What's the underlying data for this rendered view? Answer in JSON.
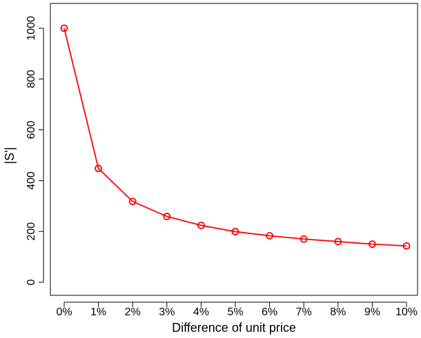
{
  "chart_data": {
    "type": "line",
    "title": "",
    "xlabel": "Difference of unit price",
    "ylabel": "|S'|",
    "categories": [
      "0%",
      "1%",
      "2%",
      "3%",
      "4%",
      "5%",
      "6%",
      "7%",
      "8%",
      "9%",
      "10%"
    ],
    "series": [
      {
        "values": [
          1000,
          448,
          318,
          259,
          224,
          199,
          183,
          170,
          160,
          150,
          143
        ],
        "color": "#ff0000",
        "marker": "open-circle"
      }
    ],
    "yticks": [
      0,
      200,
      400,
      600,
      800,
      1000
    ],
    "ytick_labels": [
      "0",
      "200",
      "400",
      "600",
      "800",
      "1000"
    ],
    "ylim": [
      -50,
      1100
    ],
    "grid": false,
    "legend": "none"
  }
}
